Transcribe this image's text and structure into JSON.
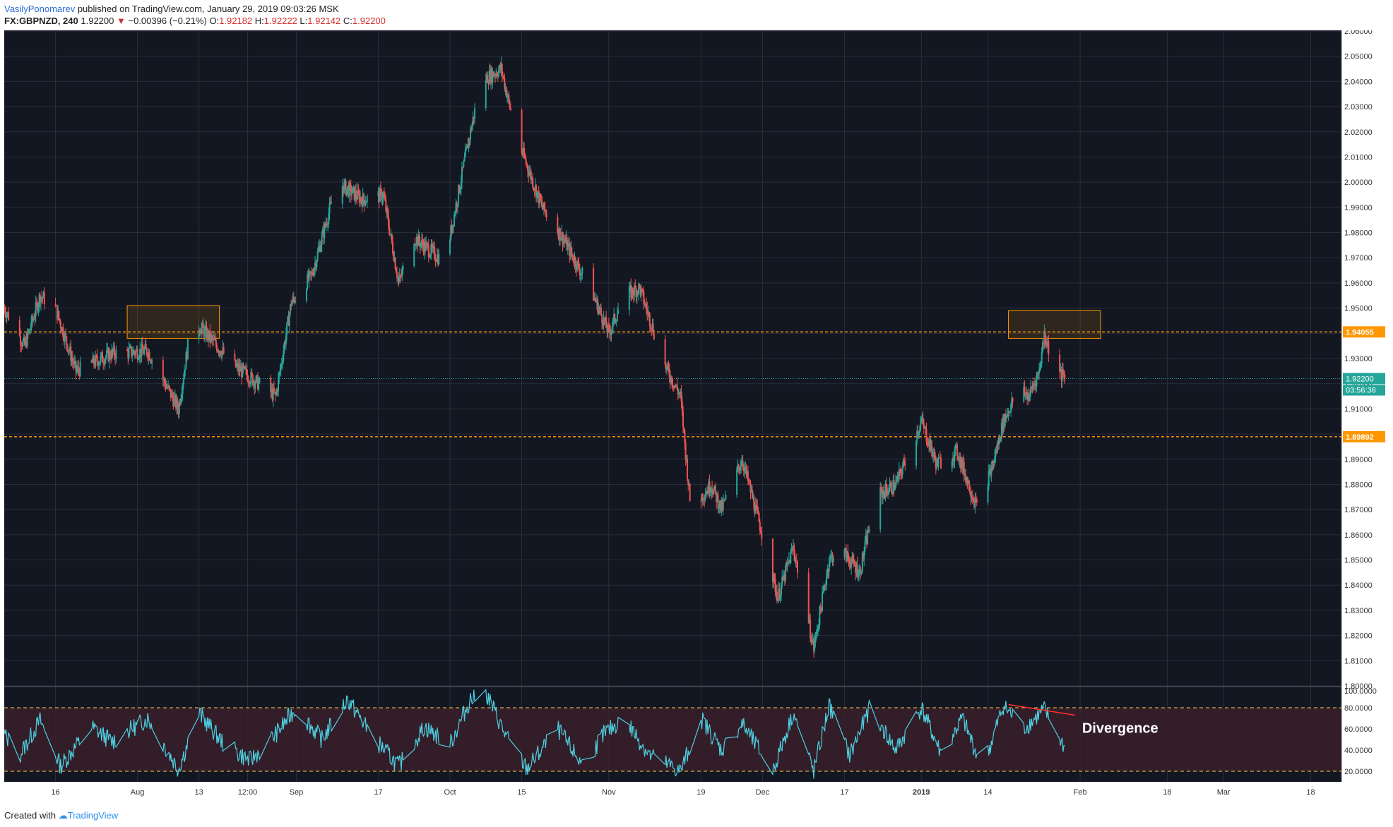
{
  "header": {
    "author": "VasilyPonomarev",
    "published": "published on TradingView.com, January 29, 2019 09:03:26 MSK",
    "symbol": "FX:GBPNZD, 240",
    "last": "1.92200",
    "arrow": "▼",
    "change": "−0.00396 (−0.21%)",
    "o_label": "O:",
    "o_val": "1.92182",
    "h_label": "H:",
    "h_val": "1.92222",
    "l_label": "L:",
    "l_val": "1.92142",
    "c_label": "C:",
    "c_val": "1.92200"
  },
  "footer": {
    "created_with": "Created with",
    "brand": "TradingView"
  },
  "colors": {
    "background": "#131722",
    "grid": "#2a2e39",
    "up": "#26a69a",
    "down": "#ef5350",
    "level": "#ff9800",
    "rsi": "#4dd0e1",
    "rsi_band": "#3a1f2a",
    "rsi_bounds": "#ffd54f",
    "axis_text": "#b2b5be",
    "divergence": "#ff3030"
  },
  "chart_data": {
    "type": "candlestick",
    "symbol": "FX:GBPNZD",
    "interval": "240",
    "y_ticks": [
      "2.06000",
      "2.05000",
      "2.04000",
      "2.03000",
      "2.02000",
      "2.01000",
      "2.00000",
      "1.99000",
      "1.98000",
      "1.97000",
      "1.96000",
      "1.95000",
      "1.94000",
      "1.93000",
      "1.92000",
      "1.91000",
      "1.90000",
      "1.89000",
      "1.88000",
      "1.87000",
      "1.86000",
      "1.85000",
      "1.84000",
      "1.83000",
      "1.82000",
      "1.81000",
      "1.80000"
    ],
    "ylim": [
      1.8,
      2.06
    ],
    "x_ticks": [
      "16",
      "Aug",
      "13",
      "12:00",
      "Sep",
      "17",
      "Oct",
      "15",
      "Nov",
      "19",
      "Dec",
      "17",
      "2019",
      "14",
      "Feb",
      "18",
      "Mar",
      "18"
    ],
    "x_range": [
      "Jul 6 2018",
      "Mar 24 2019"
    ],
    "price_path": [
      {
        "x": "Jul 6",
        "y": 1.95
      },
      {
        "x": "Jul 10",
        "y": 1.935
      },
      {
        "x": "Jul 13",
        "y": 1.955
      },
      {
        "x": "Jul 16",
        "y": 1.95
      },
      {
        "x": "Jul 20",
        "y": 1.925
      },
      {
        "x": "Jul 27",
        "y": 1.932
      },
      {
        "x": "Aug 3",
        "y": 1.933
      },
      {
        "x": "Aug 9",
        "y": 1.91
      },
      {
        "x": "Aug 11",
        "y": 1.937
      },
      {
        "x": "Aug 13",
        "y": 1.943
      },
      {
        "x": "Aug 20",
        "y": 1.927
      },
      {
        "x": "Aug 28",
        "y": 1.915
      },
      {
        "x": "Aug 31",
        "y": 1.952
      },
      {
        "x": "Sep 4",
        "y": 1.963
      },
      {
        "x": "Sep 9",
        "y": 2.0
      },
      {
        "x": "Sep 14",
        "y": 1.993
      },
      {
        "x": "Sep 18",
        "y": 1.995
      },
      {
        "x": "Sep 21",
        "y": 1.96
      },
      {
        "x": "Sep 24",
        "y": 1.978
      },
      {
        "x": "Sep 30",
        "y": 1.968
      },
      {
        "x": "Oct 4",
        "y": 2.01
      },
      {
        "x": "Oct 7",
        "y": 2.04
      },
      {
        "x": "Oct 11",
        "y": 2.045
      },
      {
        "x": "Oct 14",
        "y": 2.018
      },
      {
        "x": "Oct 19",
        "y": 1.99
      },
      {
        "x": "Oct 23",
        "y": 1.978
      },
      {
        "x": "Oct 29",
        "y": 1.955
      },
      {
        "x": "Nov 1",
        "y": 1.94
      },
      {
        "x": "Nov 4",
        "y": 1.955
      },
      {
        "x": "Nov 7",
        "y": 1.958
      },
      {
        "x": "Nov 12",
        "y": 1.927
      },
      {
        "x": "Nov 15",
        "y": 1.915
      },
      {
        "x": "Nov 17",
        "y": 1.87
      },
      {
        "x": "Nov 21",
        "y": 1.88
      },
      {
        "x": "Nov 23",
        "y": 1.87
      },
      {
        "x": "Nov 27",
        "y": 1.89
      },
      {
        "x": "Dec 1",
        "y": 1.86
      },
      {
        "x": "Dec 4",
        "y": 1.835
      },
      {
        "x": "Dec 7",
        "y": 1.855
      },
      {
        "x": "Dec 11",
        "y": 1.815
      },
      {
        "x": "Dec 14",
        "y": 1.85
      },
      {
        "x": "Dec 16",
        "y": 1.855
      },
      {
        "x": "Dec 20",
        "y": 1.845
      },
      {
        "x": "Dec 23",
        "y": 1.875
      },
      {
        "x": "Dec 27",
        "y": 1.88
      },
      {
        "x": "Jan 1",
        "y": 1.905
      },
      {
        "x": "Jan 4",
        "y": 1.888
      },
      {
        "x": "Jan 8",
        "y": 1.893
      },
      {
        "x": "Jan 12",
        "y": 1.87
      },
      {
        "x": "Jan 15",
        "y": 1.888
      },
      {
        "x": "Jan 17",
        "y": 1.905
      },
      {
        "x": "Jan 20",
        "y": 1.918
      },
      {
        "x": "Jan 22",
        "y": 1.915
      },
      {
        "x": "Jan 24",
        "y": 1.925
      },
      {
        "x": "Jan 25",
        "y": 1.94
      },
      {
        "x": "Jan 27",
        "y": 1.926
      },
      {
        "x": "Jan 29",
        "y": 1.922
      }
    ],
    "levels": [
      {
        "label": "1.94055",
        "value": 1.94055
      },
      {
        "label": "1.89892",
        "value": 1.89892
      }
    ],
    "current_price": {
      "label": "1.92200",
      "value": 1.922,
      "countdown": "03:56:36"
    },
    "zones": [
      {
        "x0": "Jul 30",
        "x1": "Aug 17",
        "y0": 1.938,
        "y1": 1.951
      },
      {
        "x0": "Jan 18",
        "x1": "Feb 5",
        "y0": 1.938,
        "y1": 1.949
      }
    ],
    "rsi": {
      "y_ticks": [
        "100.0000",
        "80.0000",
        "60.0000",
        "40.0000",
        "20.0000"
      ],
      "ylim": [
        10,
        100
      ],
      "upper": 80,
      "lower": 20,
      "path": [
        {
          "x": "Jul 6",
          "y": 55
        },
        {
          "x": "Jul 9",
          "y": 35
        },
        {
          "x": "Jul 13",
          "y": 68
        },
        {
          "x": "Jul 17",
          "y": 25
        },
        {
          "x": "Jul 23",
          "y": 62
        },
        {
          "x": "Jul 27",
          "y": 48
        },
        {
          "x": "Aug 3",
          "y": 70
        },
        {
          "x": "Aug 9",
          "y": 22
        },
        {
          "x": "Aug 13",
          "y": 75
        },
        {
          "x": "Aug 18",
          "y": 45
        },
        {
          "x": "Aug 23",
          "y": 30
        },
        {
          "x": "Aug 28",
          "y": 55
        },
        {
          "x": "Sep 1",
          "y": 80
        },
        {
          "x": "Sep 6",
          "y": 50
        },
        {
          "x": "Sep 11",
          "y": 88
        },
        {
          "x": "Sep 16",
          "y": 52
        },
        {
          "x": "Sep 21",
          "y": 25
        },
        {
          "x": "Sep 26",
          "y": 62
        },
        {
          "x": "Oct 1",
          "y": 45
        },
        {
          "x": "Oct 5",
          "y": 88
        },
        {
          "x": "Oct 8",
          "y": 95
        },
        {
          "x": "Oct 12",
          "y": 52
        },
        {
          "x": "Oct 16",
          "y": 22
        },
        {
          "x": "Oct 22",
          "y": 60
        },
        {
          "x": "Oct 27",
          "y": 25
        },
        {
          "x": "Oct 31",
          "y": 55
        },
        {
          "x": "Nov 4",
          "y": 70
        },
        {
          "x": "Nov 9",
          "y": 35
        },
        {
          "x": "Nov 15",
          "y": 20
        },
        {
          "x": "Nov 19",
          "y": 70
        },
        {
          "x": "Nov 23",
          "y": 40
        },
        {
          "x": "Nov 27",
          "y": 65
        },
        {
          "x": "Dec 3",
          "y": 20
        },
        {
          "x": "Dec 7",
          "y": 75
        },
        {
          "x": "Dec 11",
          "y": 20
        },
        {
          "x": "Dec 14",
          "y": 82
        },
        {
          "x": "Dec 18",
          "y": 35
        },
        {
          "x": "Dec 22",
          "y": 80
        },
        {
          "x": "Dec 27",
          "y": 40
        },
        {
          "x": "Jan 1",
          "y": 80
        },
        {
          "x": "Jan 5",
          "y": 35
        },
        {
          "x": "Jan 9",
          "y": 70
        },
        {
          "x": "Jan 13",
          "y": 22
        },
        {
          "x": "Jan 17",
          "y": 82
        },
        {
          "x": "Jan 21",
          "y": 60
        },
        {
          "x": "Jan 25",
          "y": 78
        },
        {
          "x": "Jan 29",
          "y": 42
        }
      ]
    },
    "annotations": [
      {
        "text": "Divergence",
        "from": {
          "x": "Jan 18",
          "y": 83
        },
        "to": {
          "x": "Jan 31",
          "y": 73
        }
      }
    ]
  }
}
